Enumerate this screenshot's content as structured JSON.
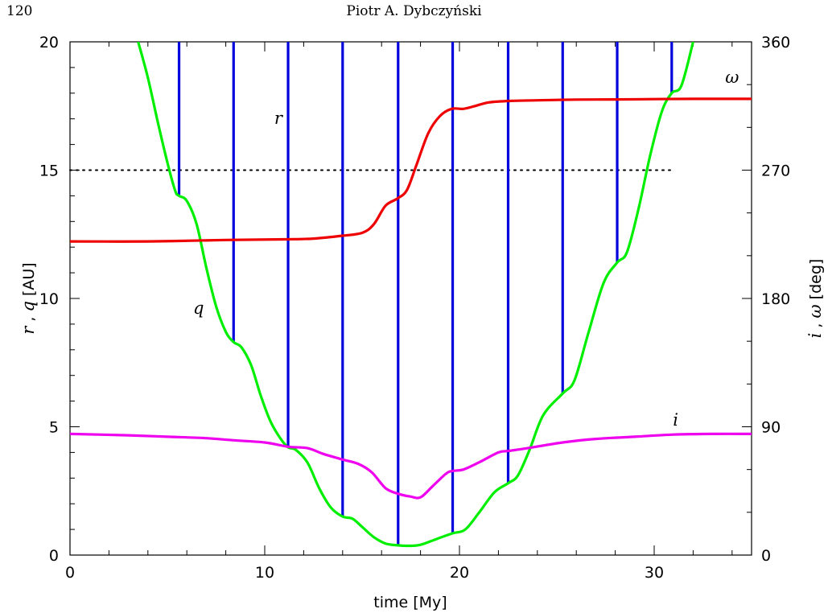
{
  "header": {
    "page_number": "120",
    "running_head": "Piotr A. Dybczyński"
  },
  "chart_data": {
    "type": "line",
    "x_axis": {
      "label": "time [My]",
      "range": [
        0,
        35
      ],
      "ticks": [
        0,
        10,
        20,
        30
      ]
    },
    "y_left_axis": {
      "label_parts": [
        "r",
        " , ",
        "q",
        " [AU]"
      ],
      "range": [
        0,
        20
      ],
      "ticks": [
        0,
        5,
        10,
        15,
        20
      ]
    },
    "y_right_axis": {
      "label_parts": [
        "i",
        " , ",
        "ω",
        " [deg]"
      ],
      "range": [
        0,
        360
      ],
      "ticks": [
        0,
        90,
        180,
        270,
        360
      ]
    },
    "reference_line": {
      "y": 15,
      "x_range": [
        0,
        31
      ],
      "style": "dotted"
    },
    "series": [
      {
        "name": "r",
        "axis": "left",
        "color": "#0000dd",
        "style": "vertical-spikes",
        "spikes": [
          {
            "x": 5.6,
            "y_min": 14.0
          },
          {
            "x": 8.4,
            "y_min": 8.3
          },
          {
            "x": 11.2,
            "y_min": 4.2
          },
          {
            "x": 14.0,
            "y_min": 1.5
          },
          {
            "x": 16.85,
            "y_min": 0.4
          },
          {
            "x": 19.65,
            "y_min": 0.85
          },
          {
            "x": 22.5,
            "y_min": 2.8
          },
          {
            "x": 25.3,
            "y_min": 6.3
          },
          {
            "x": 28.1,
            "y_min": 11.4
          },
          {
            "x": 30.9,
            "y_min": 18.0
          }
        ]
      },
      {
        "name": "q",
        "axis": "left",
        "color": "#00ee00",
        "points": [
          [
            3.5,
            20
          ],
          [
            4.0,
            18.6
          ],
          [
            4.5,
            16.9
          ],
          [
            5.0,
            15.3
          ],
          [
            5.4,
            14.2
          ],
          [
            5.6,
            14.0
          ],
          [
            6.0,
            13.8
          ],
          [
            6.5,
            12.9
          ],
          [
            7.0,
            11.2
          ],
          [
            7.5,
            9.7
          ],
          [
            8.0,
            8.7
          ],
          [
            8.4,
            8.3
          ],
          [
            8.8,
            8.1
          ],
          [
            9.3,
            7.4
          ],
          [
            9.8,
            6.2
          ],
          [
            10.3,
            5.2
          ],
          [
            10.8,
            4.55
          ],
          [
            11.2,
            4.2
          ],
          [
            11.6,
            4.1
          ],
          [
            12.2,
            3.6
          ],
          [
            12.8,
            2.6
          ],
          [
            13.4,
            1.85
          ],
          [
            14.0,
            1.5
          ],
          [
            14.5,
            1.42
          ],
          [
            15.0,
            1.1
          ],
          [
            15.6,
            0.7
          ],
          [
            16.2,
            0.45
          ],
          [
            16.85,
            0.38
          ],
          [
            17.4,
            0.36
          ],
          [
            18.0,
            0.4
          ],
          [
            18.8,
            0.62
          ],
          [
            19.65,
            0.85
          ],
          [
            20.3,
            1.0
          ],
          [
            21.0,
            1.65
          ],
          [
            21.8,
            2.45
          ],
          [
            22.5,
            2.8
          ],
          [
            23.0,
            3.1
          ],
          [
            23.6,
            4.1
          ],
          [
            24.3,
            5.45
          ],
          [
            25.3,
            6.3
          ],
          [
            25.9,
            6.8
          ],
          [
            26.6,
            8.6
          ],
          [
            27.4,
            10.6
          ],
          [
            28.1,
            11.4
          ],
          [
            28.6,
            11.8
          ],
          [
            29.2,
            13.5
          ],
          [
            29.8,
            15.6
          ],
          [
            30.4,
            17.3
          ],
          [
            30.9,
            18.0
          ],
          [
            31.4,
            18.3
          ],
          [
            32.0,
            20
          ]
        ]
      },
      {
        "name": "ω",
        "axis": "right",
        "color": "#ee0000",
        "points": [
          [
            0,
            220
          ],
          [
            4,
            220
          ],
          [
            8,
            221
          ],
          [
            11,
            221.5
          ],
          [
            12.5,
            222
          ],
          [
            14,
            224
          ],
          [
            15,
            226
          ],
          [
            15.6,
            232
          ],
          [
            16.2,
            245
          ],
          [
            16.8,
            250
          ],
          [
            17.3,
            256
          ],
          [
            17.8,
            274
          ],
          [
            18.4,
            296
          ],
          [
            19.0,
            308
          ],
          [
            19.6,
            313
          ],
          [
            20.2,
            313
          ],
          [
            20.8,
            315
          ],
          [
            21.5,
            317.5
          ],
          [
            22.5,
            318.5
          ],
          [
            24,
            319
          ],
          [
            26,
            319.5
          ],
          [
            28,
            319.6
          ],
          [
            30,
            319.8
          ],
          [
            32,
            320
          ],
          [
            35,
            320
          ]
        ]
      },
      {
        "name": "i",
        "axis": "right",
        "color": "#ee00ee",
        "points": [
          [
            0,
            85
          ],
          [
            3,
            84
          ],
          [
            5,
            83
          ],
          [
            7,
            82
          ],
          [
            8.4,
            80.5
          ],
          [
            10,
            79
          ],
          [
            11.2,
            76
          ],
          [
            12.2,
            75
          ],
          [
            13.0,
            71
          ],
          [
            14.0,
            67
          ],
          [
            14.8,
            64
          ],
          [
            15.5,
            58
          ],
          [
            16.2,
            47
          ],
          [
            16.85,
            43
          ],
          [
            17.5,
            41
          ],
          [
            18.0,
            40.5
          ],
          [
            18.6,
            48
          ],
          [
            19.3,
            57
          ],
          [
            19.65,
            59
          ],
          [
            20.2,
            60
          ],
          [
            21.0,
            65
          ],
          [
            22.0,
            72
          ],
          [
            22.5,
            73
          ],
          [
            23.5,
            75
          ],
          [
            25.3,
            79
          ],
          [
            27,
            81.5
          ],
          [
            29,
            83
          ],
          [
            31,
            84.5
          ],
          [
            33,
            85
          ],
          [
            35,
            85
          ]
        ]
      }
    ],
    "annotations": [
      {
        "text": "r",
        "x": 10.7,
        "y": 16.8
      },
      {
        "text": "q",
        "x": 6.6,
        "y": 9.4
      },
      {
        "text": "ω",
        "x": 34.0,
        "y": 18.4
      },
      {
        "text": "i",
        "x": 31.1,
        "y": 5.05
      }
    ]
  }
}
